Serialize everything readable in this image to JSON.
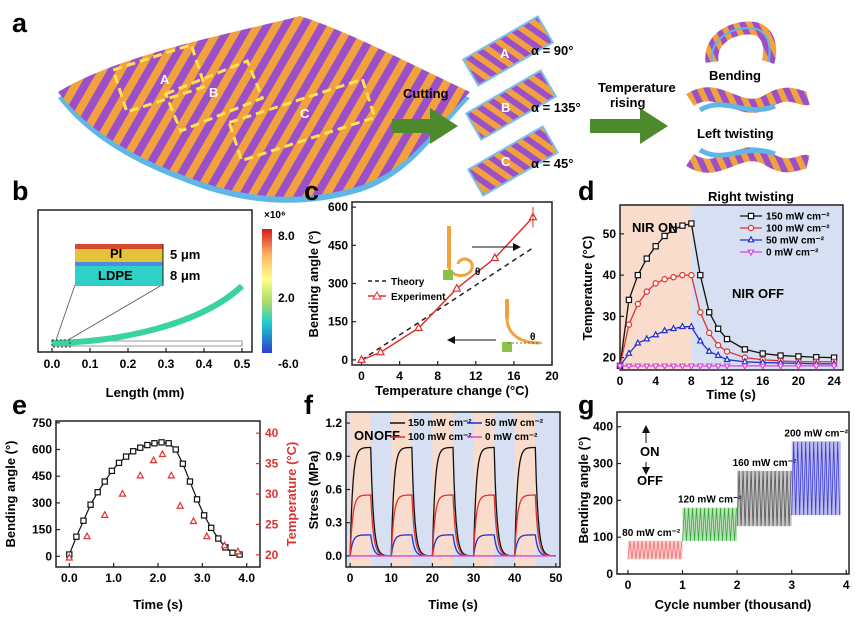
{
  "panels": {
    "a": {
      "letter": "a",
      "regions": [
        "A",
        "B",
        "C"
      ],
      "cutting": "Cutting",
      "temperature_rising": [
        "Temperature",
        "rising"
      ],
      "strips": [
        {
          "label": "A",
          "alpha": "α = 90°"
        },
        {
          "label": "B",
          "alpha": "α = 135°"
        },
        {
          "label": "C",
          "alpha": "α = 45°"
        }
      ],
      "modes": [
        "Bending",
        "Left twisting",
        "Right twisting"
      ]
    },
    "b": {
      "letter": "b",
      "layer_top": "PI",
      "layer_bottom": "LDPE",
      "thick_top": "5 μm",
      "thick_bottom": "8 μm",
      "colorbar_exp": "×10⁶",
      "colorbar_ticks": [
        "8.0",
        "2.0",
        "-6.0"
      ],
      "xlabel": "Length (mm)",
      "xticks": [
        "0.0",
        "0.1",
        "0.2",
        "0.3",
        "0.4",
        "0.5"
      ]
    },
    "d": {
      "letter": "d",
      "nir_on": "NIR ON",
      "nir_off": "NIR OFF"
    },
    "e": {
      "letter": "e"
    },
    "f": {
      "letter": "f",
      "on": "ON",
      "off": "OFF"
    },
    "g": {
      "letter": "g",
      "on": "ON",
      "off": "OFF"
    }
  },
  "chart_data": [
    {
      "id": "c",
      "letter": "c",
      "type": "line",
      "xlabel": "Temperature change (°C)",
      "ylabel": "Bending angle (°)",
      "xlim": [
        -1,
        20
      ],
      "ylim": [
        -20,
        620
      ],
      "xticks": [
        0,
        4,
        8,
        12,
        16,
        20
      ],
      "yticks": [
        0,
        150,
        300,
        450,
        600
      ],
      "series": [
        {
          "name": "Theory",
          "color": "#222222",
          "dash": true,
          "x": [
            0,
            18
          ],
          "y": [
            0,
            440
          ]
        },
        {
          "name": "Experiment",
          "color": "#e03131",
          "marker": "triangle",
          "x": [
            0,
            2,
            6,
            10,
            14,
            18
          ],
          "y": [
            0,
            30,
            125,
            280,
            400,
            560
          ]
        }
      ]
    },
    {
      "id": "d",
      "letter": "d",
      "type": "line",
      "xlabel": "Time (s)",
      "ylabel": "Temperature (°C)",
      "xlim": [
        0,
        25
      ],
      "ylim": [
        17,
        57
      ],
      "xticks": [
        0,
        4,
        8,
        12,
        16,
        20,
        24
      ],
      "yticks": [
        20,
        30,
        40,
        50
      ],
      "legend": "top-right",
      "series": [
        {
          "name": "150 mW cm⁻²",
          "color": "#111111",
          "marker": "square",
          "x": [
            0,
            1,
            2,
            3,
            4,
            5,
            6,
            7,
            8,
            9,
            10,
            11,
            12,
            14,
            16,
            18,
            20,
            22,
            24
          ],
          "y": [
            18,
            34,
            40,
            44,
            47,
            49.5,
            51,
            52,
            52.5,
            40,
            31,
            27,
            24.5,
            22,
            21,
            20.5,
            20.3,
            20.1,
            20
          ]
        },
        {
          "name": "100 mW cm⁻²",
          "color": "#e03131",
          "marker": "circle",
          "x": [
            0,
            1,
            2,
            3,
            4,
            5,
            6,
            7,
            8,
            9,
            10,
            11,
            12,
            14,
            16,
            18,
            20,
            22,
            24
          ],
          "y": [
            18,
            28,
            33,
            36,
            38,
            39,
            39.5,
            40,
            40,
            31,
            26,
            23,
            21.5,
            20,
            19.5,
            19.2,
            19,
            19,
            19
          ]
        },
        {
          "name": "50 mW cm⁻²",
          "color": "#2030d0",
          "marker": "triangle",
          "x": [
            0,
            1,
            2,
            3,
            4,
            5,
            6,
            7,
            8,
            9,
            10,
            11,
            12,
            14,
            16,
            18,
            20,
            22,
            24
          ],
          "y": [
            18,
            21,
            23.5,
            24.5,
            25.5,
            26.5,
            27,
            27.5,
            27.5,
            24,
            21.5,
            20.5,
            19.5,
            19,
            18.8,
            18.7,
            18.6,
            18.5,
            18.5
          ]
        },
        {
          "name": "0 mW cm⁻²",
          "color": "#e040e0",
          "marker": "triangle-down",
          "x": [
            0,
            1,
            2,
            3,
            4,
            5,
            6,
            7,
            8,
            9,
            10,
            11,
            12,
            14,
            16,
            18,
            20,
            22,
            24
          ],
          "y": [
            18,
            18,
            18,
            18,
            18,
            18,
            18,
            18,
            18,
            18,
            18,
            18,
            18,
            18,
            18,
            18,
            18,
            18,
            18
          ]
        }
      ]
    },
    {
      "id": "e",
      "letter": "e",
      "type": "line",
      "xlabel": "Time (s)",
      "ylabel": "Bending angle (°)",
      "y2label": "Temperature (°C)",
      "xlim": [
        -0.3,
        4.3
      ],
      "ylim": [
        -60,
        760
      ],
      "y2lim": [
        18,
        42
      ],
      "xticks": [
        0.0,
        1.0,
        2.0,
        3.0,
        4.0
      ],
      "yticks": [
        0,
        150,
        300,
        450,
        600,
        750
      ],
      "y2ticks": [
        20,
        25,
        30,
        35,
        40
      ],
      "series": [
        {
          "name": "Bending angle",
          "color": "#111111",
          "marker": "square",
          "x": [
            0,
            0.16,
            0.32,
            0.48,
            0.64,
            0.8,
            0.96,
            1.12,
            1.28,
            1.44,
            1.6,
            1.76,
            1.92,
            2.08,
            2.24,
            2.4,
            2.56,
            2.72,
            2.88,
            3.04,
            3.2,
            3.36,
            3.52,
            3.68,
            3.84
          ],
          "y": [
            10,
            110,
            200,
            290,
            360,
            420,
            480,
            525,
            560,
            590,
            610,
            625,
            635,
            640,
            635,
            600,
            520,
            420,
            320,
            230,
            160,
            100,
            50,
            20,
            10
          ]
        },
        {
          "name": "Temperature",
          "color": "#e03131",
          "marker": "triangle",
          "axis": "y2",
          "x": [
            0,
            0.4,
            0.8,
            1.2,
            1.6,
            1.9,
            2.1,
            2.3,
            2.5,
            2.8,
            3.1,
            3.5,
            3.8
          ],
          "y": [
            19.5,
            23,
            26.5,
            30,
            33,
            35.5,
            36.5,
            33,
            28,
            25.5,
            23,
            21.5,
            20.5
          ]
        }
      ]
    },
    {
      "id": "f",
      "letter": "f",
      "type": "line",
      "xlabel": "Time (s)",
      "ylabel": "Stress (MPa)",
      "xlim": [
        -1,
        51
      ],
      "ylim": [
        -0.1,
        1.3
      ],
      "xticks": [
        0,
        10,
        20,
        30,
        40,
        50
      ],
      "yticks": [
        0.0,
        0.3,
        0.6,
        0.9,
        1.2
      ],
      "legend": "top",
      "on_windows": [
        [
          0,
          5
        ],
        [
          10,
          15
        ],
        [
          20,
          25
        ],
        [
          30,
          35
        ],
        [
          40,
          45
        ]
      ],
      "series": [
        {
          "name": "150 mW cm⁻²",
          "color": "#111111",
          "peak": 0.98
        },
        {
          "name": "50 mW cm⁻²",
          "color": "#2030d0",
          "peak": 0.19
        },
        {
          "name": "100 mW cm⁻²",
          "color": "#e03131",
          "peak": 0.55
        },
        {
          "name": "0 mW cm⁻²",
          "color": "#e040e0",
          "peak": 0.0
        }
      ]
    },
    {
      "id": "g",
      "letter": "g",
      "type": "line",
      "xlabel": "Cycle number (thousand)",
      "ylabel": "Bending angle (°)",
      "xlim": [
        -0.2,
        4.05
      ],
      "ylim": [
        0,
        440
      ],
      "xticks": [
        0,
        1,
        2,
        3,
        4
      ],
      "yticks": [
        0,
        100,
        200,
        300,
        400
      ],
      "bands": [
        {
          "name": "80 mW cm⁻²",
          "color": "#f07070",
          "x0": 0,
          "x1": 1,
          "ymin": 40,
          "ymax": 90
        },
        {
          "name": "120 mW cm⁻²",
          "color": "#3ca83c",
          "x0": 1,
          "x1": 2,
          "ymin": 90,
          "ymax": 180
        },
        {
          "name": "160 mW cm⁻²",
          "color": "#555555",
          "x0": 2,
          "x1": 3,
          "ymin": 130,
          "ymax": 280
        },
        {
          "name": "200 mW cm⁻²",
          "color": "#3b3bd8",
          "x0": 3,
          "x1": 3.9,
          "ymin": 160,
          "ymax": 360
        }
      ]
    }
  ]
}
